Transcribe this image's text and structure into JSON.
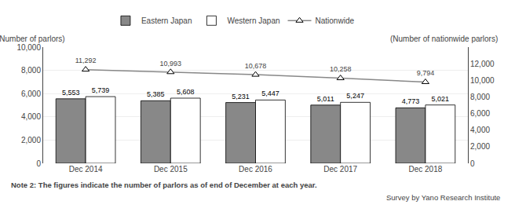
{
  "chart_data": {
    "type": "bar",
    "categories": [
      "Dec 2014",
      "Dec 2015",
      "Dec 2016",
      "Dec 2017",
      "Dec 2018"
    ],
    "series": [
      {
        "name": "Eastern Japan",
        "color": "#888888",
        "values": [
          5553,
          5385,
          5231,
          5011,
          4773
        ],
        "value_labels": [
          "5,553",
          "5,385",
          "5,231",
          "5,011",
          "4,773"
        ]
      },
      {
        "name": "Western Japan",
        "color": "#ffffff",
        "values": [
          5739,
          5608,
          5447,
          5247,
          5021
        ],
        "value_labels": [
          "5,739",
          "5,608",
          "5,447",
          "5,247",
          "5,021"
        ]
      },
      {
        "name": "Nationwide",
        "type": "line",
        "axis": "y2",
        "color": "#888888",
        "marker": "triangle",
        "values": [
          11292,
          10993,
          10678,
          10258,
          9794
        ],
        "value_labels": [
          "11,292",
          "10,993",
          "10,678",
          "10,258",
          "9,794"
        ]
      }
    ],
    "ylim": [
      0,
      10000
    ],
    "yticks": [
      0,
      {
        "value": 2000,
        "label": "2,000"
      },
      {
        "value": 4000,
        "label": "4,000"
      },
      {
        "value": 6000,
        "label": "6,000"
      },
      {
        "value": 8000,
        "label": "8,000"
      },
      {
        "value": 10000,
        "label": "10,000"
      }
    ],
    "y2lim": [
      0,
      14000
    ],
    "y2ticks": [
      0,
      {
        "value": 2000,
        "label": "2,000"
      },
      {
        "value": 4000,
        "label": "4,000"
      },
      {
        "value": 6000,
        "label": "6,000"
      },
      {
        "value": 8000,
        "label": "8,000"
      },
      {
        "value": 10000,
        "label": "10,000"
      },
      {
        "value": 12000,
        "label": "12,000"
      }
    ],
    "ylabel": "(Number of parlors)",
    "y2label": "(Number of nationwide parlors)",
    "annotations": [
      "Note 2: The figures indicate the number of parlors as of end of December at each year.",
      "Survey by Yano Research Institute"
    ],
    "grid": true,
    "data_labels": true,
    "legend": "top"
  }
}
